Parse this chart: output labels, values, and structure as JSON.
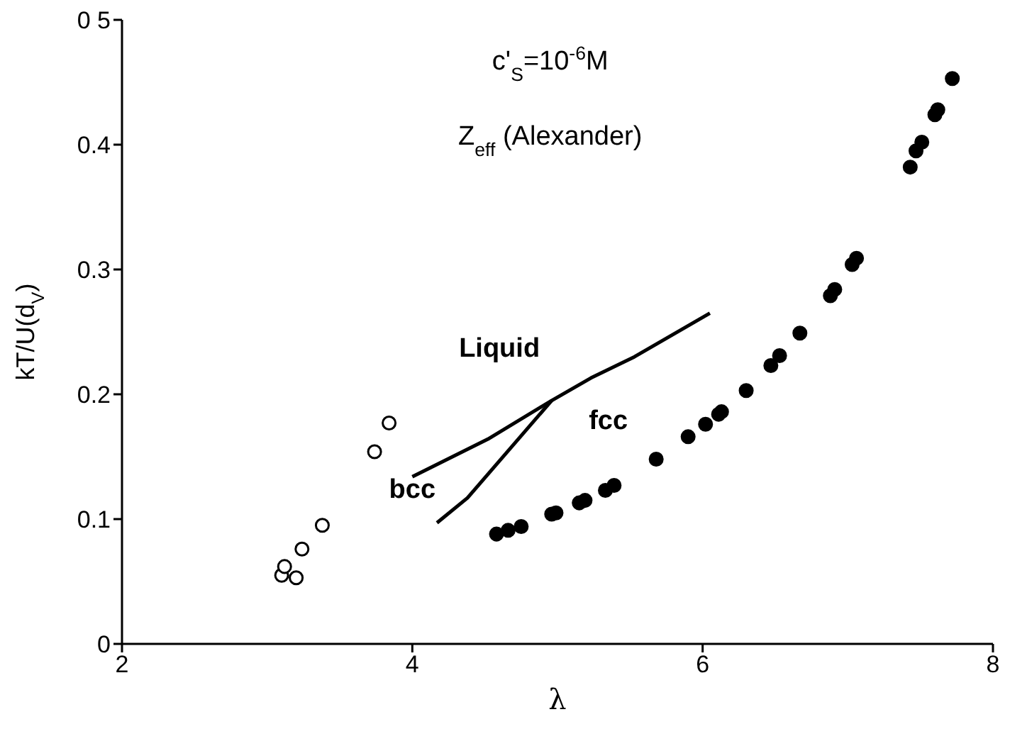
{
  "chart_data": {
    "type": "scatter",
    "xlabel": "λ",
    "ylabel": "kT/U(d$_{V}$)",
    "xlim": [
      2,
      8
    ],
    "xticks": [
      2,
      4,
      6,
      8
    ],
    "ylim": [
      0,
      0.5
    ],
    "yticks": [
      0,
      0.1,
      0.2,
      0.3,
      0.4,
      {
        "value": 0.5,
        "label": "0 5"
      }
    ],
    "grid": false,
    "legend": false,
    "marker": "circle",
    "annotations": [
      "c'$_{S}$=10$^{-6}$M",
      "Z$_{eff}$  (Alexander)",
      "Liquid",
      "fcc",
      "bcc"
    ],
    "series": [
      {
        "color": "#000000",
        "x": [
          3.1,
          3.12,
          3.2,
          3.24,
          3.38,
          3.74,
          3.84
        ],
        "values": [
          0.055,
          0.062,
          0.053,
          0.076,
          0.095,
          0.154,
          0.177
        ]
      },
      {
        "color": "#000000",
        "x": [
          4.58,
          4.66,
          4.75,
          4.96,
          4.99,
          5.15,
          5.19,
          5.33,
          5.39,
          5.68,
          5.9,
          6.02,
          6.11,
          6.13,
          6.3,
          6.47,
          6.53,
          6.67,
          6.88,
          6.91,
          7.03,
          7.06,
          7.43,
          7.47,
          7.51,
          7.6,
          7.62,
          7.72
        ],
        "values": [
          0.088,
          0.091,
          0.094,
          0.104,
          0.105,
          0.113,
          0.115,
          0.123,
          0.127,
          0.148,
          0.166,
          0.176,
          0.184,
          0.186,
          0.203,
          0.223,
          0.231,
          0.249,
          0.279,
          0.284,
          0.304,
          0.309,
          0.382,
          0.395,
          0.402,
          0.424,
          0.428,
          0.453
        ]
      },
      {
        "type": "line",
        "marker": "none",
        "color": "#000000",
        "x": [
          4.0,
          4.52,
          4.96,
          5.23,
          5.53,
          6.05
        ],
        "values": [
          0.134,
          0.164,
          0.195,
          0.213,
          0.23,
          0.265
        ]
      },
      {
        "type": "line",
        "marker": "none",
        "color": "#000000",
        "x": [
          4.17,
          4.38,
          4.96
        ],
        "values": [
          0.097,
          0.117,
          0.195
        ]
      }
    ]
  }
}
